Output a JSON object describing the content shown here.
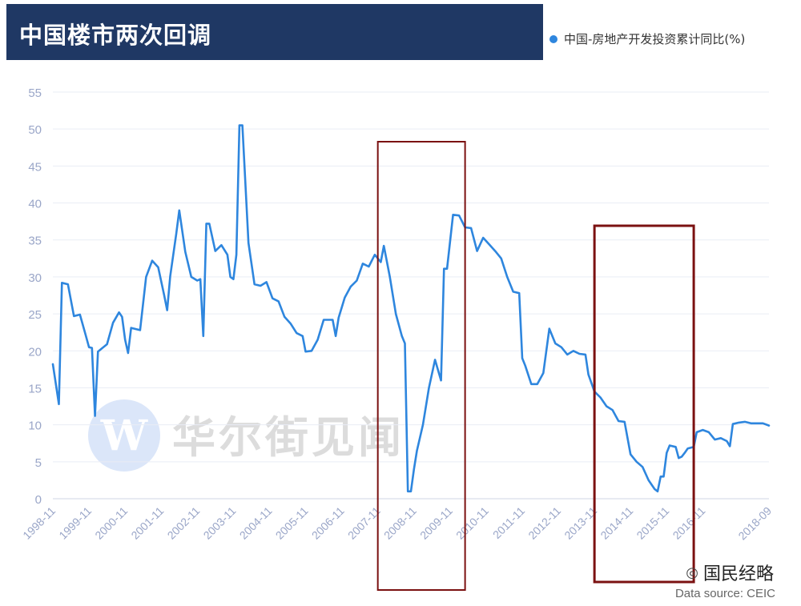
{
  "title": "中国楼市两次回调",
  "legend_label": "中国-房地产开发投资累计同比(%)",
  "source": "Data source: CEIC",
  "watermark_center": "华尔街见闻",
  "watermark_logo_letter": "W",
  "watermark_bottom": "国民经略",
  "colors": {
    "title_bg": "#1f3864",
    "series": "#2e86de",
    "highlight_box": "#7b1111",
    "axis_text": "#9aa6c8",
    "grid": "#e9edf5"
  },
  "chart_data": {
    "type": "line",
    "title": "中国楼市两次回调",
    "ylim": [
      0,
      55
    ],
    "yticks": [
      0,
      5,
      10,
      15,
      20,
      25,
      30,
      35,
      40,
      45,
      50,
      55
    ],
    "xlim": [
      "1998-11",
      "2018-09"
    ],
    "xticks": [
      "1998-11",
      "1999-11",
      "2000-11",
      "2001-11",
      "2002-11",
      "2003-11",
      "2004-11",
      "2005-11",
      "2006-11",
      "2007-11",
      "2008-11",
      "2009-11",
      "2010-11",
      "2011-11",
      "2012-11",
      "2013-11",
      "2014-11",
      "2015-11",
      "2016-11",
      "2018-09"
    ],
    "grid": true,
    "legend_position": "top-right",
    "highlight_ranges": [
      [
        "2007-11",
        "2010-04"
      ],
      [
        "2013-11",
        "2016-08"
      ]
    ],
    "series": [
      {
        "name": "中国-房地产开发投资累计同比(%)",
        "points": [
          [
            "1998-11",
            18.2
          ],
          [
            "1999-01",
            12.8
          ],
          [
            "1999-02",
            29.2
          ],
          [
            "1999-04",
            29.0
          ],
          [
            "1999-06",
            24.7
          ],
          [
            "1999-08",
            24.9
          ],
          [
            "1999-10",
            22.0
          ],
          [
            "1999-11",
            20.5
          ],
          [
            "1999-12",
            20.4
          ],
          [
            "2000-01",
            11.2
          ],
          [
            "2000-02",
            19.9
          ],
          [
            "2000-05",
            20.9
          ],
          [
            "2000-07",
            23.8
          ],
          [
            "2000-09",
            25.2
          ],
          [
            "2000-10",
            24.6
          ],
          [
            "2000-11",
            21.5
          ],
          [
            "2000-12",
            19.7
          ],
          [
            "2001-01",
            23.1
          ],
          [
            "2001-04",
            22.8
          ],
          [
            "2001-06",
            30.0
          ],
          [
            "2001-08",
            32.2
          ],
          [
            "2001-10",
            31.3
          ],
          [
            "2001-12",
            27.5
          ],
          [
            "2002-01",
            25.5
          ],
          [
            "2002-02",
            30.1
          ],
          [
            "2002-04",
            35.8
          ],
          [
            "2002-05",
            39.0
          ],
          [
            "2002-07",
            33.4
          ],
          [
            "2002-09",
            30.0
          ],
          [
            "2002-11",
            29.5
          ],
          [
            "2002-12",
            29.7
          ],
          [
            "2003-01",
            22.0
          ],
          [
            "2003-02",
            37.2
          ],
          [
            "2003-03",
            37.2
          ],
          [
            "2003-05",
            33.5
          ],
          [
            "2003-07",
            34.3
          ],
          [
            "2003-09",
            33.0
          ],
          [
            "2003-10",
            30.0
          ],
          [
            "2003-11",
            29.7
          ],
          [
            "2003-12",
            33.0
          ],
          [
            "2004-01",
            50.5
          ],
          [
            "2004-02",
            50.5
          ],
          [
            "2004-04",
            34.6
          ],
          [
            "2004-06",
            29.0
          ],
          [
            "2004-08",
            28.8
          ],
          [
            "2004-10",
            29.3
          ],
          [
            "2004-12",
            27.1
          ],
          [
            "2005-02",
            26.7
          ],
          [
            "2005-04",
            24.6
          ],
          [
            "2005-06",
            23.7
          ],
          [
            "2005-08",
            22.4
          ],
          [
            "2005-10",
            22.0
          ],
          [
            "2005-11",
            19.9
          ],
          [
            "2006-01",
            20.0
          ],
          [
            "2006-03",
            21.5
          ],
          [
            "2006-05",
            24.2
          ],
          [
            "2006-08",
            24.2
          ],
          [
            "2006-09",
            22.0
          ],
          [
            "2006-10",
            24.5
          ],
          [
            "2006-12",
            27.2
          ],
          [
            "2007-02",
            28.7
          ],
          [
            "2007-04",
            29.5
          ],
          [
            "2007-06",
            31.8
          ],
          [
            "2007-08",
            31.4
          ],
          [
            "2007-10",
            33.0
          ],
          [
            "2007-12",
            32.0
          ],
          [
            "2008-01",
            34.2
          ],
          [
            "2008-03",
            30.0
          ],
          [
            "2008-05",
            25.0
          ],
          [
            "2008-07",
            22.0
          ],
          [
            "2008-08",
            21.0
          ],
          [
            "2008-09",
            1.0
          ],
          [
            "2008-10",
            1.0
          ],
          [
            "2008-11",
            4.0
          ],
          [
            "2008-12",
            6.5
          ],
          [
            "2009-02",
            10.0
          ],
          [
            "2009-04",
            15.0
          ],
          [
            "2009-06",
            18.8
          ],
          [
            "2009-08",
            16.0
          ],
          [
            "2009-09",
            31.1
          ],
          [
            "2009-10",
            31.1
          ],
          [
            "2009-12",
            38.4
          ],
          [
            "2010-02",
            38.3
          ],
          [
            "2010-04",
            36.7
          ],
          [
            "2010-06",
            36.6
          ],
          [
            "2010-08",
            33.5
          ],
          [
            "2010-10",
            35.3
          ],
          [
            "2010-12",
            34.4
          ],
          [
            "2011-02",
            33.5
          ],
          [
            "2011-04",
            32.5
          ],
          [
            "2011-06",
            30.0
          ],
          [
            "2011-08",
            28.0
          ],
          [
            "2011-10",
            27.8
          ],
          [
            "2011-11",
            19.0
          ],
          [
            "2011-12",
            18.0
          ],
          [
            "2012-02",
            15.5
          ],
          [
            "2012-04",
            15.5
          ],
          [
            "2012-06",
            17.0
          ],
          [
            "2012-08",
            23.0
          ],
          [
            "2012-10",
            21.0
          ],
          [
            "2012-12",
            20.5
          ],
          [
            "2013-02",
            19.5
          ],
          [
            "2013-04",
            20.0
          ],
          [
            "2013-06",
            19.6
          ],
          [
            "2013-08",
            19.5
          ],
          [
            "2013-09",
            16.8
          ],
          [
            "2013-11",
            14.5
          ],
          [
            "2014-01",
            13.7
          ],
          [
            "2014-03",
            12.5
          ],
          [
            "2014-05",
            12.0
          ],
          [
            "2014-07",
            10.5
          ],
          [
            "2014-09",
            10.4
          ],
          [
            "2014-11",
            6.0
          ],
          [
            "2015-01",
            5.0
          ],
          [
            "2015-03",
            4.3
          ],
          [
            "2015-05",
            2.5
          ],
          [
            "2015-07",
            1.3
          ],
          [
            "2015-08",
            1.0
          ],
          [
            "2015-09",
            3.0
          ],
          [
            "2015-10",
            3.0
          ],
          [
            "2015-11",
            6.2
          ],
          [
            "2015-12",
            7.2
          ],
          [
            "2016-02",
            7.0
          ],
          [
            "2016-03",
            5.5
          ],
          [
            "2016-04",
            5.7
          ],
          [
            "2016-05",
            6.2
          ],
          [
            "2016-06",
            6.8
          ],
          [
            "2016-08",
            7.0
          ],
          [
            "2016-09",
            9.0
          ],
          [
            "2016-11",
            9.3
          ],
          [
            "2017-01",
            9.0
          ],
          [
            "2017-03",
            8.0
          ],
          [
            "2017-05",
            8.2
          ],
          [
            "2017-07",
            7.8
          ],
          [
            "2017-08",
            7.1
          ],
          [
            "2017-09",
            10.1
          ],
          [
            "2017-11",
            10.3
          ],
          [
            "2018-01",
            10.4
          ],
          [
            "2018-03",
            10.2
          ],
          [
            "2018-05",
            10.2
          ],
          [
            "2018-07",
            10.2
          ],
          [
            "2018-09",
            9.9
          ]
        ]
      }
    ]
  }
}
